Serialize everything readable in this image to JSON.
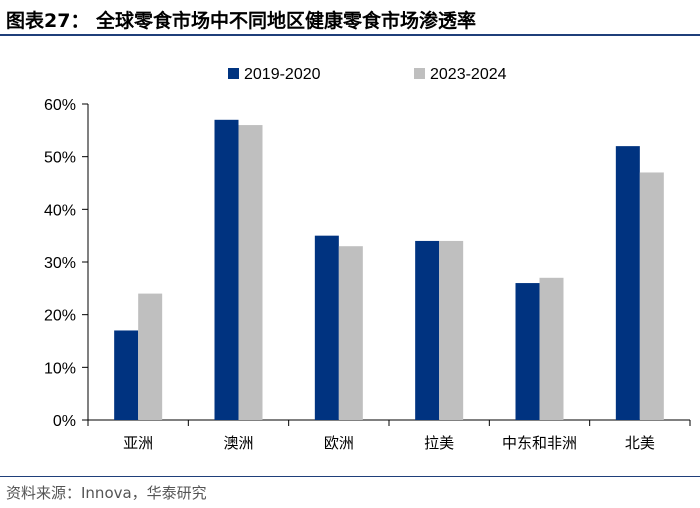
{
  "header": {
    "title": "图表27：  全球零食市场中不同地区健康零食市场渗透率"
  },
  "footer": {
    "source": "资料来源：Innova，华泰研究"
  },
  "chart_data": {
    "type": "bar",
    "categories": [
      "亚洲",
      "澳洲",
      "欧洲",
      "拉美",
      "中东和非洲",
      "北美"
    ],
    "series": [
      {
        "name": "2019-2020",
        "values": [
          0.17,
          0.57,
          0.35,
          0.34,
          0.26,
          0.52
        ],
        "color": "#003380"
      },
      {
        "name": "2023-2024",
        "values": [
          0.24,
          0.56,
          0.33,
          0.34,
          0.27,
          0.47
        ],
        "color": "#bfbfbf"
      }
    ],
    "ylim": [
      0,
      0.6
    ],
    "yticks": [
      0,
      0.1,
      0.2,
      0.3,
      0.4,
      0.5,
      0.6
    ],
    "ytick_labels": [
      "0%",
      "10%",
      "20%",
      "30%",
      "40%",
      "50%",
      "60%"
    ],
    "legend_position": "top",
    "grid": false
  }
}
